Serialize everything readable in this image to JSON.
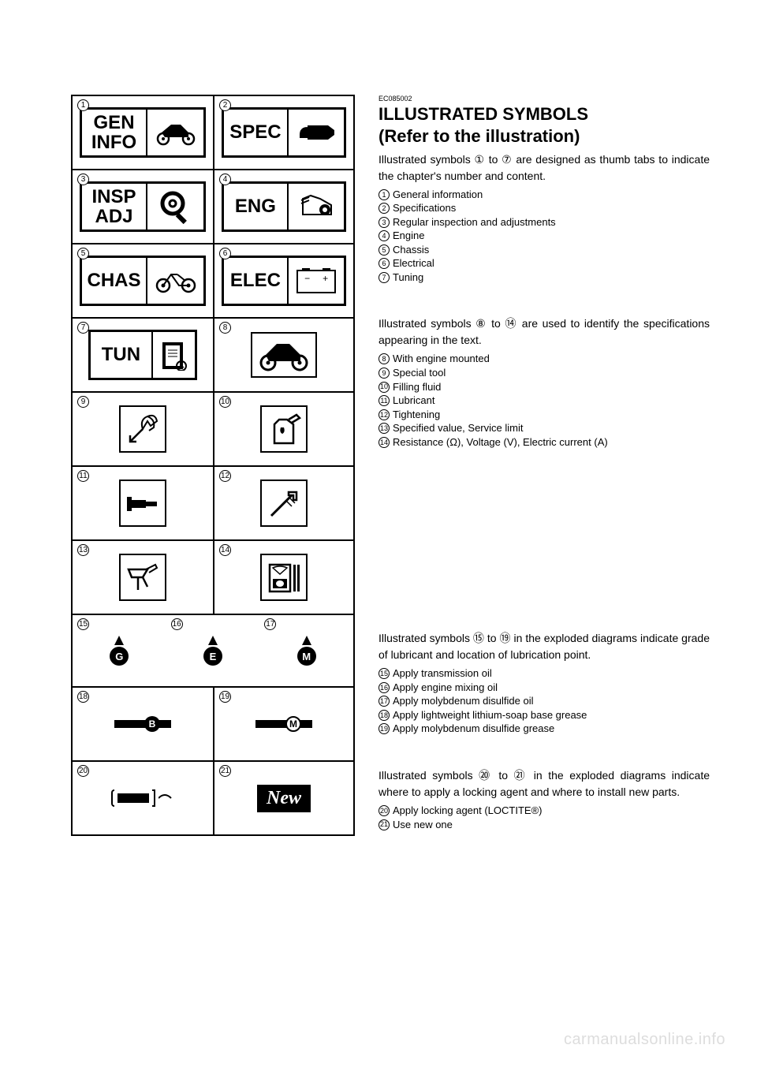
{
  "doc_id": "EC085002",
  "heading": "ILLUSTRATED SYMBOLS",
  "subheading": "(Refer to the illustration)",
  "watermark": "carmanualsonline.info",
  "section1": {
    "para": "Illustrated symbols ① to ⑦ are designed as thumb tabs to indicate the chapter's number and content.",
    "items": [
      {
        "n": "1",
        "t": "General information"
      },
      {
        "n": "2",
        "t": "Specifications"
      },
      {
        "n": "3",
        "t": "Regular inspection and adjustments"
      },
      {
        "n": "4",
        "t": "Engine"
      },
      {
        "n": "5",
        "t": "Chassis"
      },
      {
        "n": "6",
        "t": "Electrical"
      },
      {
        "n": "7",
        "t": "Tuning"
      }
    ]
  },
  "section2": {
    "para": "Illustrated symbols ⑧ to ⑭ are used to identify the specifications appearing in the text.",
    "items": [
      {
        "n": "8",
        "t": "With engine mounted"
      },
      {
        "n": "9",
        "t": "Special tool"
      },
      {
        "n": "10",
        "t": "Filling fluid"
      },
      {
        "n": "11",
        "t": "Lubricant"
      },
      {
        "n": "12",
        "t": "Tightening"
      },
      {
        "n": "13",
        "t": "Specified value, Service limit"
      },
      {
        "n": "14",
        "t": "Resistance (Ω), Voltage (V), Electric current (A)"
      }
    ]
  },
  "section3": {
    "para": "Illustrated symbols ⑮ to ⑲ in the exploded diagrams indicate grade of lubricant and location of lubrication point.",
    "items": [
      {
        "n": "15",
        "t": "Apply transmission oil"
      },
      {
        "n": "16",
        "t": "Apply engine mixing oil"
      },
      {
        "n": "17",
        "t": "Apply molybdenum disulfide oil"
      },
      {
        "n": "18",
        "t": "Apply lightweight lithium-soap base grease"
      },
      {
        "n": "19",
        "t": "Apply molybdenum disulfide grease"
      }
    ]
  },
  "section4": {
    "para": "Illustrated symbols ⑳ to ㉑ in the exploded diagrams indicate where to apply a locking agent and where to install new parts.",
    "items": [
      {
        "n": "20",
        "t": "Apply locking agent (LOCTITE®)"
      },
      {
        "n": "21",
        "t": "Use new one"
      }
    ]
  },
  "tabs": {
    "t1a": "GEN",
    "t1b": "INFO",
    "t2": "SPEC",
    "t3a": "INSP",
    "t3b": "ADJ",
    "t4": "ENG",
    "t5": "CHAS",
    "t6": "ELEC",
    "t7": "TUN"
  },
  "oil": {
    "g": "G",
    "e": "E",
    "m": "M",
    "b": "B",
    "m2": "M"
  },
  "new_label": "New",
  "elec_minus": "−",
  "elec_plus": "+"
}
